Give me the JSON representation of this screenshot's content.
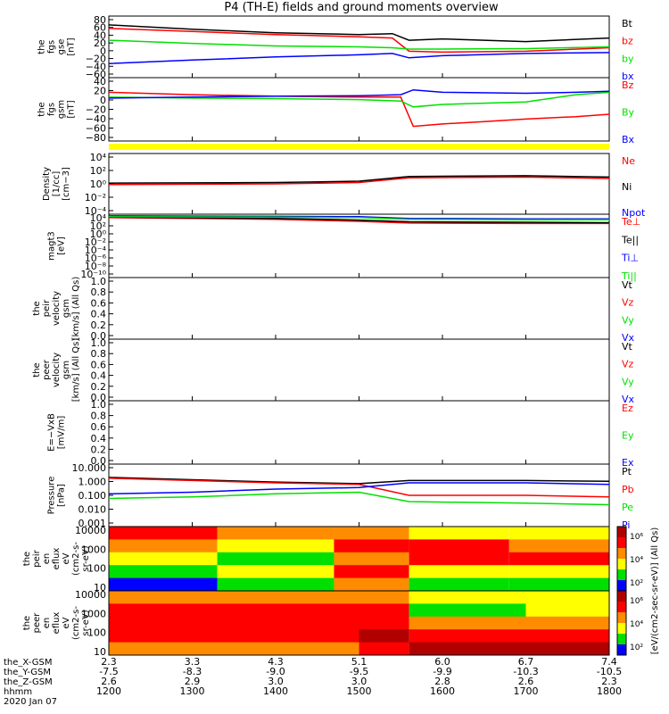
{
  "title": "P4 (TH-E) fields and ground moments overview",
  "colors": {
    "black": "#000000",
    "red": "#ff0000",
    "green": "#00e000",
    "blue": "#0000ff",
    "yellow": "#ffff00",
    "orange": "#ff8c00",
    "darkred": "#b00000"
  },
  "footer": {
    "rows": [
      {
        "label": "the_X-GSM",
        "values": [
          "2.3",
          "3.3",
          "4.3",
          "5.1",
          "6.0",
          "6.7",
          "7.4"
        ]
      },
      {
        "label": "the_Y-GSM",
        "values": [
          "-7.5",
          "-8.3",
          "-9.0",
          "-9.5",
          "-9.9",
          "-10.3",
          "-10.5"
        ]
      },
      {
        "label": "the_Z-GSM",
        "values": [
          "2.6",
          "2.9",
          "3.0",
          "3.0",
          "2.8",
          "2.6",
          "2.3"
        ]
      },
      {
        "label": "hhmm",
        "values": [
          "1200",
          "1300",
          "1400",
          "1500",
          "1600",
          "1700",
          "1800"
        ]
      }
    ],
    "date": "2020 Jan 07"
  },
  "colorbar_label": "[eV/(cm2-sec-sr-eV)] (All Qs)",
  "colorbar_ticks": [
    "10⁶",
    "10⁴",
    "10²"
  ],
  "chart_data": [
    {
      "type": "line",
      "panel": "fgs-gse",
      "ylabel": [
        "the",
        "fgs",
        "gse",
        "[nT]"
      ],
      "x": [
        1200,
        1800
      ],
      "ylim": [
        -60,
        80
      ],
      "yticks": [
        "80",
        "60",
        "40",
        "20",
        "0",
        "−20",
        "−40",
        "−60"
      ],
      "series": [
        {
          "name": "Bt",
          "color": "black",
          "points": [
            [
              1200,
              60
            ],
            [
              1300,
              50
            ],
            [
              1400,
              42
            ],
            [
              1500,
              38
            ],
            [
              1540,
              40
            ],
            [
              1560,
              25
            ],
            [
              1600,
              28
            ],
            [
              1700,
              22
            ],
            [
              1800,
              30
            ]
          ]
        },
        {
          "name": "bz",
          "color": "red",
          "points": [
            [
              1200,
              52
            ],
            [
              1300,
              45
            ],
            [
              1400,
              38
            ],
            [
              1500,
              33
            ],
            [
              1540,
              30
            ],
            [
              1560,
              0
            ],
            [
              1600,
              -2
            ],
            [
              1700,
              0
            ],
            [
              1800,
              8
            ]
          ]
        },
        {
          "name": "by",
          "color": "green",
          "points": [
            [
              1200,
              25
            ],
            [
              1300,
              18
            ],
            [
              1400,
              12
            ],
            [
              1500,
              10
            ],
            [
              1540,
              8
            ],
            [
              1560,
              5
            ],
            [
              1600,
              5
            ],
            [
              1700,
              6
            ],
            [
              1800,
              10
            ]
          ]
        },
        {
          "name": "bx",
          "color": "blue",
          "points": [
            [
              1200,
              -28
            ],
            [
              1300,
              -20
            ],
            [
              1400,
              -13
            ],
            [
              1500,
              -8
            ],
            [
              1540,
              -5
            ],
            [
              1560,
              -15
            ],
            [
              1600,
              -10
            ],
            [
              1700,
              -5
            ],
            [
              1800,
              -3
            ]
          ]
        }
      ]
    },
    {
      "type": "line",
      "panel": "fgs-gsm",
      "ylabel": [
        "the",
        "fgs",
        "gsm",
        "[nT]"
      ],
      "x": [
        1200,
        1800
      ],
      "ylim": [
        -90,
        40
      ],
      "yticks": [
        "40",
        "20",
        "0",
        "−20",
        "−40",
        "−60",
        "−80"
      ],
      "series": [
        {
          "name": "Bz",
          "color": "red",
          "points": [
            [
              1200,
              10
            ],
            [
              1300,
              5
            ],
            [
              1400,
              2
            ],
            [
              1500,
              0
            ],
            [
              1550,
              0
            ],
            [
              1565,
              -60
            ],
            [
              1600,
              -55
            ],
            [
              1650,
              -50
            ],
            [
              1700,
              -45
            ],
            [
              1760,
              -40
            ],
            [
              1800,
              -35
            ]
          ]
        },
        {
          "name": "By",
          "color": "green",
          "points": [
            [
              1200,
              0
            ],
            [
              1300,
              -2
            ],
            [
              1400,
              -3
            ],
            [
              1500,
              -5
            ],
            [
              1550,
              -8
            ],
            [
              1565,
              -20
            ],
            [
              1600,
              -15
            ],
            [
              1700,
              -10
            ],
            [
              1760,
              5
            ],
            [
              1800,
              10
            ]
          ]
        },
        {
          "name": "Bx",
          "color": "blue",
          "points": [
            [
              1200,
              -2
            ],
            [
              1300,
              0
            ],
            [
              1400,
              2
            ],
            [
              1500,
              3
            ],
            [
              1550,
              5
            ],
            [
              1565,
              15
            ],
            [
              1600,
              10
            ],
            [
              1700,
              8
            ],
            [
              1760,
              10
            ],
            [
              1800,
              12
            ]
          ]
        }
      ]
    },
    {
      "type": "line",
      "panel": "density",
      "ylabel": [
        "Density",
        "[1/cc]",
        "[cm−3]"
      ],
      "x": [
        1200,
        1800
      ],
      "ylog": true,
      "ylim_exp": [
        -5,
        4
      ],
      "yticks": [
        "10⁴",
        "10²",
        "10⁰",
        "10⁻²",
        "10⁻⁴"
      ],
      "series": [
        {
          "name": "Ne",
          "color": "red",
          "points": [
            [
              1200,
              -0.6
            ],
            [
              1400,
              -0.5
            ],
            [
              1500,
              -0.3
            ],
            [
              1560,
              0.4
            ],
            [
              1700,
              0.5
            ],
            [
              1800,
              0.3
            ]
          ]
        },
        {
          "name": "Ni",
          "color": "black",
          "points": [
            [
              1200,
              -0.4
            ],
            [
              1400,
              -0.3
            ],
            [
              1500,
              -0.1
            ],
            [
              1560,
              0.6
            ],
            [
              1700,
              0.7
            ],
            [
              1800,
              0.5
            ]
          ]
        },
        {
          "name": "Npot",
          "color": "blue",
          "points": []
        }
      ]
    },
    {
      "type": "line",
      "panel": "temperature",
      "ylabel": [
        "magt3",
        "[eV]"
      ],
      "x": [
        1200,
        1800
      ],
      "ylog": true,
      "ylim_exp": [
        -10,
        5
      ],
      "yticks": [
        "10⁴",
        "10²",
        "10⁰",
        "10⁻²",
        "10⁻⁴",
        "10⁻⁶",
        "10⁻⁸",
        "10⁻¹⁰"
      ],
      "series": [
        {
          "name": "Te⊥",
          "color": "red",
          "points": [
            [
              1200,
              4.2
            ],
            [
              1400,
              3.8
            ],
            [
              1500,
              3.3
            ],
            [
              1560,
              2.9
            ],
            [
              1700,
              2.8
            ],
            [
              1800,
              2.8
            ]
          ]
        },
        {
          "name": "Te||",
          "color": "black",
          "points": [
            [
              1200,
              4.3
            ],
            [
              1400,
              4.0
            ],
            [
              1500,
              3.6
            ],
            [
              1560,
              3.2
            ],
            [
              1700,
              3.1
            ],
            [
              1800,
              3.0
            ]
          ]
        },
        {
          "name": "Ti⊥",
          "color": "blue",
          "points": [
            [
              1200,
              4.6
            ],
            [
              1400,
              4.5
            ],
            [
              1500,
              4.4
            ],
            [
              1560,
              4.0
            ],
            [
              1700,
              3.9
            ],
            [
              1800,
              3.9
            ]
          ]
        },
        {
          "name": "Ti||",
          "color": "green",
          "points": [
            [
              1200,
              4.4
            ],
            [
              1400,
              4.3
            ],
            [
              1500,
              4.2
            ],
            [
              1560,
              3.8
            ],
            [
              1700,
              3.7
            ],
            [
              1800,
              3.7
            ]
          ]
        }
      ]
    },
    {
      "type": "line",
      "panel": "peir-velocity",
      "ylabel": [
        "the",
        "peir",
        "velocity",
        "gsm",
        "[km/s] (All Qs)"
      ],
      "x": [
        1200,
        1800
      ],
      "ylim": [
        0,
        1
      ],
      "yticks": [
        "1.0",
        "0.8",
        "0.6",
        "0.4",
        "0.2",
        "0.0"
      ],
      "series": [
        {
          "name": "Vt",
          "color": "black",
          "points": []
        },
        {
          "name": "Vz",
          "color": "red",
          "points": []
        },
        {
          "name": "Vy",
          "color": "green",
          "points": []
        },
        {
          "name": "Vx",
          "color": "blue",
          "points": []
        }
      ]
    },
    {
      "type": "line",
      "panel": "peer-velocity",
      "ylabel": [
        "the",
        "peer",
        "velocity",
        "gsm",
        "[km/s] (All Qs)"
      ],
      "x": [
        1200,
        1800
      ],
      "ylim": [
        0,
        1
      ],
      "yticks": [
        "1.0",
        "0.8",
        "0.6",
        "0.4",
        "0.2",
        "0.0"
      ],
      "series": [
        {
          "name": "Vt",
          "color": "black",
          "points": []
        },
        {
          "name": "Vz",
          "color": "red",
          "points": []
        },
        {
          "name": "Vy",
          "color": "green",
          "points": []
        },
        {
          "name": "Vx",
          "color": "blue",
          "points": []
        }
      ]
    },
    {
      "type": "line",
      "panel": "efield",
      "ylabel": [
        "E=−VxB",
        "[mV/m]"
      ],
      "x": [
        1200,
        1800
      ],
      "ylim": [
        0,
        1
      ],
      "yticks": [
        "1.0",
        "0.8",
        "0.6",
        "0.4",
        "0.2",
        "0.0"
      ],
      "series": [
        {
          "name": "Ez",
          "color": "red",
          "points": []
        },
        {
          "name": "Ey",
          "color": "green",
          "points": []
        },
        {
          "name": "Ex",
          "color": "blue",
          "points": []
        }
      ]
    },
    {
      "type": "line",
      "panel": "pressure",
      "ylabel": [
        "Pressure",
        "[nPa]"
      ],
      "x": [
        1200,
        1800
      ],
      "ylog": true,
      "ylim_exp": [
        -3,
        1
      ],
      "yticks": [
        "10.000",
        "1.000",
        "0.100",
        "0.010",
        "0.001"
      ],
      "series": [
        {
          "name": "Pt",
          "color": "black",
          "points": [
            [
              1200,
              0.15
            ],
            [
              1300,
              0.0
            ],
            [
              1400,
              -0.15
            ],
            [
              1500,
              -0.25
            ],
            [
              1560,
              -0.05
            ],
            [
              1700,
              -0.05
            ],
            [
              1800,
              -0.1
            ]
          ]
        },
        {
          "name": "Pb",
          "color": "red",
          "points": [
            [
              1200,
              0.1
            ],
            [
              1300,
              -0.05
            ],
            [
              1400,
              -0.2
            ],
            [
              1500,
              -0.3
            ],
            [
              1560,
              -1.0
            ],
            [
              1700,
              -1.0
            ],
            [
              1800,
              -1.1
            ]
          ]
        },
        {
          "name": "Pe",
          "color": "green",
          "points": [
            [
              1200,
              -1.2
            ],
            [
              1300,
              -1.1
            ],
            [
              1400,
              -0.9
            ],
            [
              1500,
              -0.8
            ],
            [
              1560,
              -1.4
            ],
            [
              1700,
              -1.5
            ],
            [
              1800,
              -1.6
            ]
          ]
        },
        {
          "name": "Pi",
          "color": "blue",
          "points": [
            [
              1200,
              -0.9
            ],
            [
              1300,
              -0.8
            ],
            [
              1400,
              -0.6
            ],
            [
              1500,
              -0.5
            ],
            [
              1560,
              -0.2
            ],
            [
              1700,
              -0.2
            ],
            [
              1800,
              -0.3
            ]
          ]
        }
      ]
    },
    {
      "type": "heatmap",
      "panel": "peir-eflux",
      "ylabel": [
        "the",
        "peir",
        "en",
        "eflux",
        "eV",
        "(cm2-s-",
        "sr-eV)"
      ],
      "x": [
        1200,
        1800
      ],
      "ylog": true,
      "yticks": [
        "10000",
        "1000",
        "100",
        "10"
      ],
      "segments": [
        {
          "x": [
            1200,
            1330
          ],
          "bands": [
            "red",
            "orange",
            "yellow",
            "green",
            "blue"
          ]
        },
        {
          "x": [
            1330,
            1470
          ],
          "bands": [
            "orange",
            "yellow",
            "green",
            "yellow",
            "green"
          ]
        },
        {
          "x": [
            1470,
            1560
          ],
          "bands": [
            "orange",
            "red",
            "orange",
            "red",
            "orange"
          ]
        },
        {
          "x": [
            1560,
            1680
          ],
          "bands": [
            "yellow",
            "red",
            "red",
            "yellow",
            "green"
          ]
        },
        {
          "x": [
            1680,
            1800
          ],
          "bands": [
            "yellow",
            "orange",
            "red",
            "yellow",
            "green"
          ]
        }
      ]
    },
    {
      "type": "heatmap",
      "panel": "peer-eflux",
      "ylabel": [
        "the",
        "peer",
        "en",
        "eflux",
        "eV",
        "(cm2-s-",
        "sr-eV)"
      ],
      "x": [
        1200,
        1800
      ],
      "ylog": true,
      "yticks": [
        "10000",
        "1000",
        "100",
        "10"
      ],
      "segments": [
        {
          "x": [
            1200,
            1500
          ],
          "bands": [
            "orange",
            "red",
            "red",
            "red",
            "orange"
          ]
        },
        {
          "x": [
            1500,
            1560
          ],
          "bands": [
            "orange",
            "red",
            "red",
            "darkred",
            "red"
          ]
        },
        {
          "x": [
            1560,
            1700
          ],
          "bands": [
            "yellow",
            "green",
            "orange",
            "red",
            "darkred"
          ]
        },
        {
          "x": [
            1700,
            1800
          ],
          "bands": [
            "yellow",
            "yellow",
            "orange",
            "red",
            "darkred"
          ]
        }
      ]
    }
  ]
}
